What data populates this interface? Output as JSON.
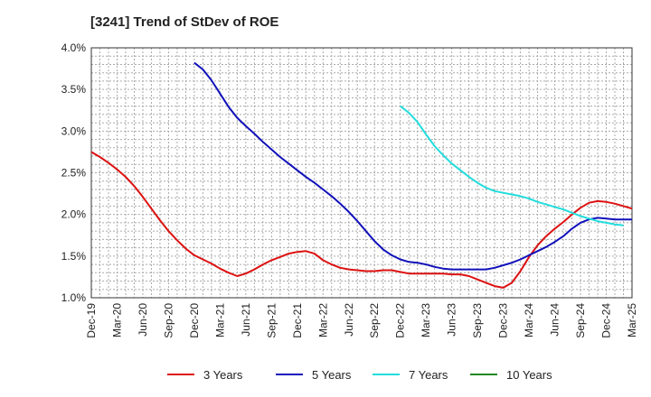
{
  "chart_data": {
    "type": "line",
    "title": "[3241]  Trend of StDev of ROE",
    "xlabel": "",
    "ylabel": "",
    "x_ticks": [
      "Dec-19",
      "Mar-20",
      "Jun-20",
      "Sep-20",
      "Dec-20",
      "Mar-21",
      "Jun-21",
      "Sep-21",
      "Dec-21",
      "Mar-22",
      "Jun-22",
      "Sep-22",
      "Dec-22",
      "Mar-23",
      "Jun-23",
      "Sep-23",
      "Dec-23",
      "Mar-24",
      "Jun-24",
      "Sep-24",
      "Dec-24",
      "Mar-25"
    ],
    "y_ticks": [
      "1.0%",
      "1.5%",
      "2.0%",
      "2.5%",
      "3.0%",
      "3.5%",
      "4.0%"
    ],
    "ylim": [
      1.0,
      4.0
    ],
    "grid": true,
    "legend_position": "bottom",
    "series": [
      {
        "name": "3 Years",
        "color": "#dd1111",
        "points": [
          [
            "Dec-19",
            2.75
          ],
          [
            "Jan-20",
            2.69
          ],
          [
            "Feb-20",
            2.62
          ],
          [
            "Mar-20",
            2.54
          ],
          [
            "Apr-20",
            2.45
          ],
          [
            "May-20",
            2.34
          ],
          [
            "Jun-20",
            2.21
          ],
          [
            "Jul-20",
            2.07
          ],
          [
            "Aug-20",
            1.93
          ],
          [
            "Sep-20",
            1.8
          ],
          [
            "Oct-20",
            1.69
          ],
          [
            "Nov-20",
            1.59
          ],
          [
            "Dec-20",
            1.51
          ],
          [
            "Jan-21",
            1.46
          ],
          [
            "Feb-21",
            1.41
          ],
          [
            "Mar-21",
            1.35
          ],
          [
            "Apr-21",
            1.3
          ],
          [
            "May-21",
            1.26
          ],
          [
            "Jun-21",
            1.29
          ],
          [
            "Jul-21",
            1.34
          ],
          [
            "Aug-21",
            1.4
          ],
          [
            "Sep-21",
            1.45
          ],
          [
            "Oct-21",
            1.49
          ],
          [
            "Nov-21",
            1.53
          ],
          [
            "Dec-21",
            1.55
          ],
          [
            "Jan-22",
            1.56
          ],
          [
            "Feb-22",
            1.53
          ],
          [
            "Mar-22",
            1.45
          ],
          [
            "Apr-22",
            1.4
          ],
          [
            "May-22",
            1.36
          ],
          [
            "Jun-22",
            1.34
          ],
          [
            "Jul-22",
            1.33
          ],
          [
            "Aug-22",
            1.32
          ],
          [
            "Sep-22",
            1.32
          ],
          [
            "Oct-22",
            1.33
          ],
          [
            "Nov-22",
            1.33
          ],
          [
            "Dec-22",
            1.31
          ],
          [
            "Jan-23",
            1.29
          ],
          [
            "Feb-23",
            1.29
          ],
          [
            "Mar-23",
            1.29
          ],
          [
            "Apr-23",
            1.29
          ],
          [
            "May-23",
            1.29
          ],
          [
            "Jun-23",
            1.28
          ],
          [
            "Jul-23",
            1.28
          ],
          [
            "Aug-23",
            1.26
          ],
          [
            "Sep-23",
            1.22
          ],
          [
            "Oct-23",
            1.18
          ],
          [
            "Nov-23",
            1.14
          ],
          [
            "Dec-23",
            1.12
          ],
          [
            "Jan-24",
            1.18
          ],
          [
            "Feb-24",
            1.32
          ],
          [
            "Mar-24",
            1.49
          ],
          [
            "Apr-24",
            1.63
          ],
          [
            "May-24",
            1.74
          ],
          [
            "Jun-24",
            1.83
          ],
          [
            "Jul-24",
            1.91
          ],
          [
            "Aug-24",
            2.0
          ],
          [
            "Sep-24",
            2.08
          ],
          [
            "Oct-24",
            2.14
          ],
          [
            "Nov-24",
            2.16
          ],
          [
            "Dec-24",
            2.15
          ],
          [
            "Jan-25",
            2.13
          ],
          [
            "Feb-25",
            2.1
          ],
          [
            "Mar-25",
            2.07
          ]
        ]
      },
      {
        "name": "5 Years",
        "color": "#1111bb",
        "points": [
          [
            "Dec-20",
            3.82
          ],
          [
            "Jan-21",
            3.74
          ],
          [
            "Feb-21",
            3.61
          ],
          [
            "Mar-21",
            3.45
          ],
          [
            "Apr-21",
            3.29
          ],
          [
            "May-21",
            3.16
          ],
          [
            "Jun-21",
            3.06
          ],
          [
            "Jul-21",
            2.97
          ],
          [
            "Aug-21",
            2.87
          ],
          [
            "Sep-21",
            2.78
          ],
          [
            "Oct-21",
            2.69
          ],
          [
            "Nov-21",
            2.61
          ],
          [
            "Dec-21",
            2.53
          ],
          [
            "Jan-22",
            2.45
          ],
          [
            "Feb-22",
            2.38
          ],
          [
            "Mar-22",
            2.3
          ],
          [
            "Apr-22",
            2.22
          ],
          [
            "May-22",
            2.13
          ],
          [
            "Jun-22",
            2.03
          ],
          [
            "Jul-22",
            1.92
          ],
          [
            "Aug-22",
            1.8
          ],
          [
            "Sep-22",
            1.68
          ],
          [
            "Oct-22",
            1.58
          ],
          [
            "Nov-22",
            1.51
          ],
          [
            "Dec-22",
            1.46
          ],
          [
            "Jan-23",
            1.43
          ],
          [
            "Feb-23",
            1.42
          ],
          [
            "Mar-23",
            1.4
          ],
          [
            "Apr-23",
            1.37
          ],
          [
            "May-23",
            1.35
          ],
          [
            "Jun-23",
            1.34
          ],
          [
            "Jul-23",
            1.34
          ],
          [
            "Aug-23",
            1.34
          ],
          [
            "Sep-23",
            1.34
          ],
          [
            "Oct-23",
            1.34
          ],
          [
            "Nov-23",
            1.36
          ],
          [
            "Dec-23",
            1.39
          ],
          [
            "Jan-24",
            1.42
          ],
          [
            "Feb-24",
            1.46
          ],
          [
            "Mar-24",
            1.51
          ],
          [
            "Apr-24",
            1.56
          ],
          [
            "May-24",
            1.61
          ],
          [
            "Jun-24",
            1.67
          ],
          [
            "Jul-24",
            1.74
          ],
          [
            "Aug-24",
            1.83
          ],
          [
            "Sep-24",
            1.9
          ],
          [
            "Oct-24",
            1.94
          ],
          [
            "Nov-24",
            1.96
          ],
          [
            "Dec-24",
            1.95
          ],
          [
            "Jan-25",
            1.94
          ],
          [
            "Feb-25",
            1.94
          ],
          [
            "Mar-25",
            1.94
          ]
        ]
      },
      {
        "name": "7 Years",
        "color": "#22dddd",
        "points": [
          [
            "Dec-22",
            3.3
          ],
          [
            "Jan-23",
            3.22
          ],
          [
            "Feb-23",
            3.11
          ],
          [
            "Mar-23",
            2.96
          ],
          [
            "Apr-23",
            2.82
          ],
          [
            "May-23",
            2.71
          ],
          [
            "Jun-23",
            2.61
          ],
          [
            "Jul-23",
            2.53
          ],
          [
            "Aug-23",
            2.45
          ],
          [
            "Sep-23",
            2.38
          ],
          [
            "Oct-23",
            2.32
          ],
          [
            "Nov-23",
            2.28
          ],
          [
            "Dec-23",
            2.26
          ],
          [
            "Jan-24",
            2.24
          ],
          [
            "Feb-24",
            2.22
          ],
          [
            "Mar-24",
            2.19
          ],
          [
            "Apr-24",
            2.15
          ],
          [
            "May-24",
            2.12
          ],
          [
            "Jun-24",
            2.09
          ],
          [
            "Jul-24",
            2.06
          ],
          [
            "Aug-24",
            2.02
          ],
          [
            "Sep-24",
            1.98
          ],
          [
            "Oct-24",
            1.95
          ],
          [
            "Nov-24",
            1.92
          ],
          [
            "Dec-24",
            1.9
          ],
          [
            "Jan-25",
            1.88
          ],
          [
            "Feb-25",
            1.87
          ]
        ]
      },
      {
        "name": "10 Years",
        "color": "#228822",
        "points": []
      }
    ]
  }
}
